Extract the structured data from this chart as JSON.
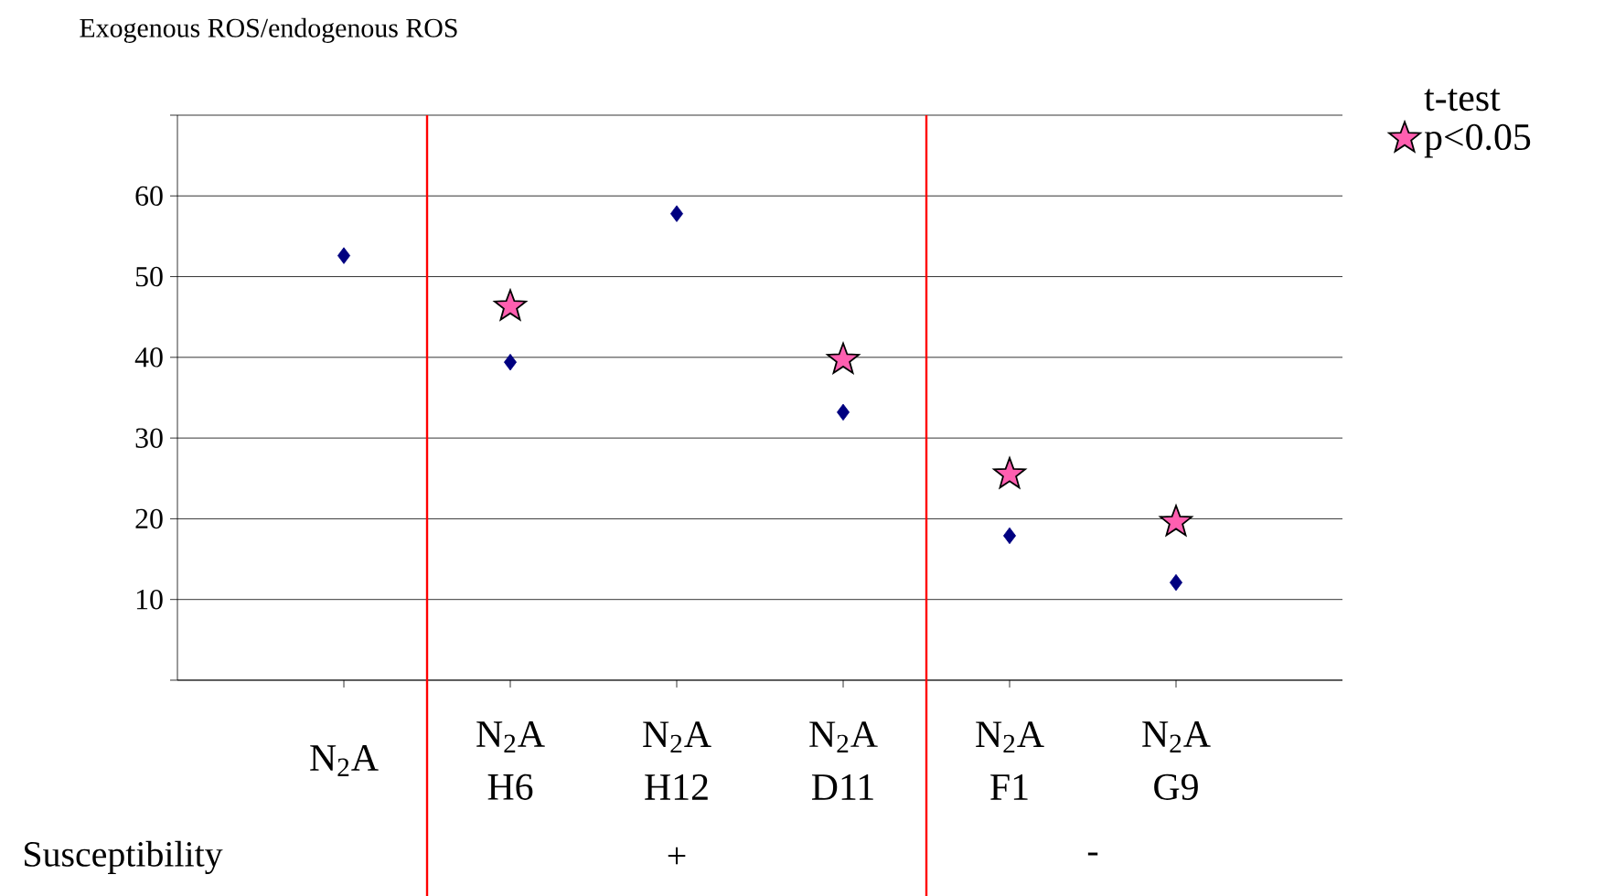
{
  "chart_data": {
    "type": "scatter",
    "ylabel": "Exogenous ROS/endogenous ROS",
    "legend_title": "t-test",
    "categories": [
      "N$_{2}$A",
      "N$_{2}$A H6",
      "N$_{2}$A H12",
      "N$_{2}$A D11",
      "N$_{2}$A F1",
      "N$_{2}$A G9"
    ],
    "series": [
      {
        "color": "#000080",
        "marker": "diamond",
        "values": [
          52.6,
          39.4,
          57.8,
          33.2,
          17.9,
          12.1
        ]
      },
      {
        "name": "p<0.05",
        "color": "#ff5fb0",
        "marker": "star",
        "values": [
          null,
          46.3,
          null,
          39.7,
          25.5,
          19.6
        ]
      }
    ],
    "ylim": [
      0,
      70
    ],
    "yticks": [
      {
        "value": 0,
        "label": null
      },
      10,
      20,
      30,
      40,
      50,
      60,
      {
        "value": 70,
        "label": null
      }
    ],
    "grid": "y",
    "legend": "top right",
    "annotations": [
      "Susceptibility",
      "+",
      "-"
    ]
  }
}
